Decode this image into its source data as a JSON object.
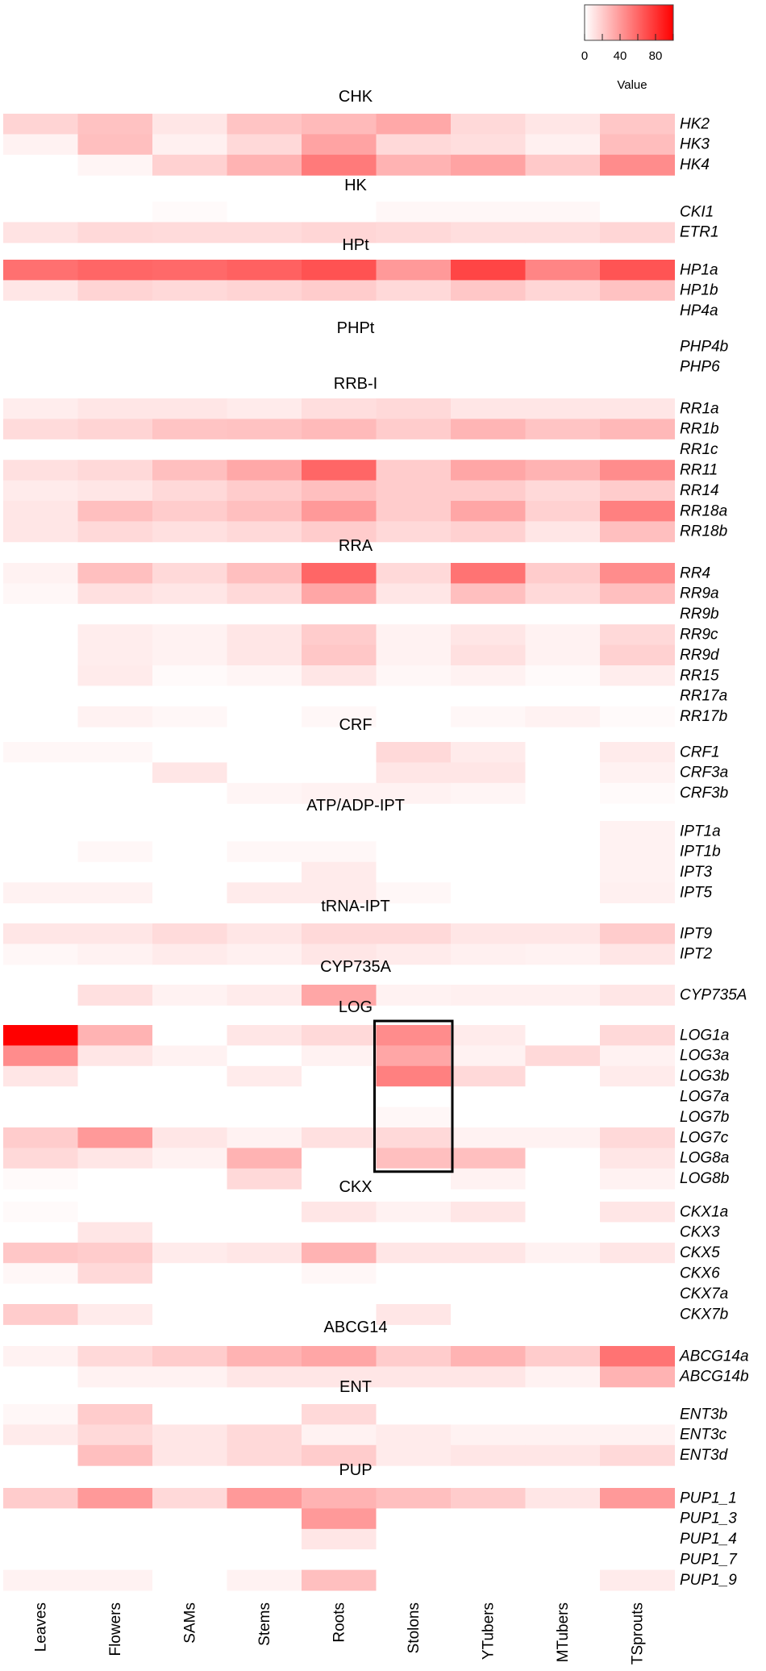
{
  "chart_data": {
    "type": "heatmap",
    "columns": [
      "Leaves",
      "Flowers",
      "SAMs",
      "Stems",
      "Roots",
      "Stolons",
      "YTubers",
      "MTubers",
      "TSprouts"
    ],
    "colors": {
      "low": "#ffffff",
      "high": "#ff0000"
    },
    "value_range": [
      0,
      100
    ],
    "legend": {
      "title": "Value",
      "ticks": [
        0,
        40,
        80
      ],
      "placement": "top-right"
    },
    "highlight": {
      "column": "Stolons",
      "from_row": "LOG1a",
      "to_row": "LOG8a"
    },
    "groups": [
      {
        "name": "CHK",
        "rows": [
          {
            "gene": "HK2",
            "values": [
              17,
              24,
              10,
              23,
              27,
              34,
              15,
              10,
              22
            ]
          },
          {
            "gene": "HK3",
            "values": [
              5,
              25,
              6,
              15,
              36,
              15,
              13,
              6,
              26
            ]
          },
          {
            "gene": "HK4",
            "values": [
              0,
              4,
              18,
              30,
              52,
              30,
              36,
              21,
              45
            ]
          }
        ]
      },
      {
        "name": "HK",
        "rows": [
          {
            "gene": "CKI1",
            "values": [
              0,
              0,
              2,
              0,
              0,
              3,
              3,
              3,
              0
            ]
          },
          {
            "gene": "ETR1",
            "values": [
              11,
              15,
              14,
              14,
              16,
              15,
              13,
              13,
              16
            ]
          }
        ]
      },
      {
        "name": "HPt",
        "rows": [
          {
            "gene": "HP1a",
            "values": [
              56,
              60,
              59,
              62,
              68,
              40,
              73,
              48,
              67
            ]
          },
          {
            "gene": "HP1b",
            "values": [
              10,
              17,
              15,
              17,
              20,
              15,
              22,
              16,
              24
            ]
          },
          {
            "gene": "HP4a",
            "values": [
              0,
              0,
              0,
              0,
              0,
              0,
              0,
              0,
              0
            ]
          }
        ]
      },
      {
        "name": "PHPt",
        "rows": [
          {
            "gene": "PHP4b",
            "values": [
              0,
              0,
              0,
              0,
              0,
              0,
              0,
              0,
              0
            ]
          },
          {
            "gene": "PHP6",
            "values": [
              0,
              0,
              0,
              0,
              0,
              0,
              0,
              0,
              0
            ]
          }
        ]
      },
      {
        "name": "RRB-I",
        "rows": [
          {
            "gene": "RR1a",
            "values": [
              7,
              10,
              10,
              8,
              13,
              15,
              10,
              10,
              10
            ]
          },
          {
            "gene": "RR1b",
            "values": [
              14,
              17,
              23,
              24,
              27,
              20,
              29,
              23,
              28
            ]
          },
          {
            "gene": "RR1c",
            "values": [
              0,
              0,
              0,
              0,
              0,
              0,
              0,
              0,
              0
            ]
          },
          {
            "gene": "RR11",
            "values": [
              12,
              15,
              25,
              34,
              60,
              20,
              35,
              30,
              45
            ]
          },
          {
            "gene": "RR14",
            "values": [
              8,
              10,
              15,
              20,
              25,
              20,
              20,
              15,
              20
            ]
          },
          {
            "gene": "RR18a",
            "values": [
              10,
              25,
              20,
              25,
              40,
              20,
              35,
              18,
              50
            ]
          },
          {
            "gene": "RR18b",
            "values": [
              10,
              15,
              12,
              15,
              20,
              15,
              18,
              10,
              25
            ]
          }
        ]
      },
      {
        "name": "RRA",
        "rows": [
          {
            "gene": "RR4",
            "values": [
              5,
              25,
              15,
              25,
              60,
              15,
              55,
              20,
              45
            ]
          },
          {
            "gene": "RR9a",
            "values": [
              3,
              12,
              10,
              15,
              35,
              10,
              25,
              15,
              25
            ]
          },
          {
            "gene": "RR9b",
            "values": [
              0,
              0,
              0,
              0,
              0,
              0,
              0,
              0,
              0
            ]
          },
          {
            "gene": "RR9c",
            "values": [
              0,
              7,
              5,
              10,
              20,
              5,
              10,
              5,
              15
            ]
          },
          {
            "gene": "RR9d",
            "values": [
              0,
              7,
              5,
              10,
              22,
              5,
              12,
              5,
              18
            ]
          },
          {
            "gene": "RR15",
            "values": [
              0,
              8,
              2,
              4,
              10,
              3,
              5,
              2,
              7
            ]
          },
          {
            "gene": "RR17a",
            "values": [
              0,
              0,
              0,
              0,
              0,
              0,
              0,
              0,
              0
            ]
          },
          {
            "gene": "RR17b",
            "values": [
              0,
              5,
              3,
              0,
              3,
              0,
              3,
              5,
              2
            ]
          }
        ]
      },
      {
        "name": "CRF",
        "rows": [
          {
            "gene": "CRF1",
            "values": [
              3,
              3,
              0,
              0,
              0,
              15,
              8,
              0,
              8
            ]
          },
          {
            "gene": "CRF3a",
            "values": [
              0,
              0,
              10,
              0,
              0,
              10,
              10,
              0,
              5
            ]
          },
          {
            "gene": "CRF3b",
            "values": [
              0,
              0,
              0,
              4,
              5,
              5,
              4,
              0,
              2
            ]
          }
        ]
      },
      {
        "name": "ATP/ADP-IPT",
        "rows": [
          {
            "gene": "IPT1a",
            "values": [
              0,
              0,
              0,
              0,
              0,
              0,
              0,
              0,
              5
            ]
          },
          {
            "gene": "IPT1b",
            "values": [
              0,
              3,
              0,
              3,
              3,
              0,
              0,
              0,
              5
            ]
          },
          {
            "gene": "IPT3",
            "values": [
              0,
              0,
              0,
              0,
              8,
              0,
              0,
              0,
              5
            ]
          },
          {
            "gene": "IPT5",
            "values": [
              5,
              5,
              0,
              8,
              8,
              3,
              0,
              0,
              6
            ]
          }
        ]
      },
      {
        "name": "tRNA-IPT",
        "rows": [
          {
            "gene": "IPT9",
            "values": [
              10,
              10,
              14,
              10,
              15,
              15,
              10,
              10,
              20
            ]
          },
          {
            "gene": "IPT2",
            "values": [
              3,
              5,
              8,
              6,
              10,
              8,
              6,
              5,
              10
            ]
          }
        ]
      },
      {
        "name": "CYP735A",
        "rows": [
          {
            "gene": "CYP735A",
            "values": [
              0,
              12,
              5,
              8,
              35,
              5,
              6,
              6,
              10
            ]
          }
        ]
      },
      {
        "name": "LOG",
        "rows": [
          {
            "gene": "LOG1a",
            "values": [
              100,
              30,
              0,
              10,
              15,
              45,
              8,
              0,
              15
            ]
          },
          {
            "gene": "LOG3a",
            "values": [
              45,
              10,
              5,
              0,
              5,
              35,
              5,
              15,
              5
            ]
          },
          {
            "gene": "LOG3b",
            "values": [
              10,
              0,
              0,
              8,
              0,
              50,
              15,
              0,
              8
            ]
          },
          {
            "gene": "LOG7a",
            "values": [
              0,
              0,
              0,
              0,
              0,
              0,
              0,
              0,
              0
            ]
          },
          {
            "gene": "LOG7b",
            "values": [
              0,
              0,
              0,
              0,
              0,
              3,
              0,
              0,
              0
            ]
          },
          {
            "gene": "LOG7c",
            "values": [
              20,
              40,
              10,
              5,
              12,
              15,
              5,
              5,
              15
            ]
          },
          {
            "gene": "LOG8a",
            "values": [
              15,
              10,
              5,
              30,
              0,
              25,
              25,
              0,
              10
            ]
          },
          {
            "gene": "LOG8b",
            "values": [
              2,
              0,
              0,
              15,
              0,
              0,
              5,
              0,
              5
            ]
          }
        ]
      },
      {
        "name": "CKX",
        "rows": [
          {
            "gene": "CKX1a",
            "values": [
              2,
              0,
              0,
              0,
              10,
              5,
              10,
              0,
              10
            ]
          },
          {
            "gene": "CKX3",
            "values": [
              0,
              10,
              0,
              0,
              0,
              0,
              0,
              0,
              0
            ]
          },
          {
            "gene": "CKX5",
            "values": [
              22,
              20,
              8,
              10,
              30,
              10,
              10,
              5,
              10
            ]
          },
          {
            "gene": "CKX6",
            "values": [
              3,
              15,
              0,
              0,
              3,
              0,
              0,
              0,
              0
            ]
          },
          {
            "gene": "CKX7a",
            "values": [
              0,
              0,
              0,
              0,
              0,
              0,
              0,
              0,
              0
            ]
          },
          {
            "gene": "CKX7b",
            "values": [
              20,
              8,
              0,
              0,
              0,
              10,
              0,
              0,
              0
            ]
          }
        ]
      },
      {
        "name": "ABCG14",
        "rows": [
          {
            "gene": "ABCG14a",
            "values": [
              5,
              15,
              20,
              30,
              35,
              20,
              30,
              20,
              55
            ]
          },
          {
            "gene": "ABCG14b",
            "values": [
              0,
              5,
              5,
              10,
              10,
              10,
              10,
              5,
              30
            ]
          }
        ]
      },
      {
        "name": "ENT",
        "rows": [
          {
            "gene": "ENT3b",
            "values": [
              3,
              20,
              0,
              0,
              15,
              0,
              0,
              0,
              0
            ]
          },
          {
            "gene": "ENT3c",
            "values": [
              8,
              15,
              10,
              15,
              5,
              8,
              5,
              5,
              5
            ]
          },
          {
            "gene": "ENT3d",
            "values": [
              0,
              25,
              10,
              15,
              20,
              8,
              10,
              10,
              15
            ]
          }
        ]
      },
      {
        "name": "PUP",
        "rows": [
          {
            "gene": "PUP1_1",
            "values": [
              20,
              40,
              15,
              40,
              30,
              25,
              20,
              10,
              40
            ]
          },
          {
            "gene": "PUP1_3",
            "values": [
              0,
              0,
              0,
              0,
              40,
              0,
              0,
              0,
              0
            ]
          },
          {
            "gene": "PUP1_4",
            "values": [
              0,
              0,
              0,
              0,
              10,
              0,
              0,
              0,
              0
            ]
          },
          {
            "gene": "PUP1_7",
            "values": [
              0,
              0,
              0,
              0,
              0,
              0,
              0,
              0,
              0
            ]
          },
          {
            "gene": "PUP1_9",
            "values": [
              5,
              5,
              0,
              5,
              25,
              0,
              0,
              0,
              8
            ]
          }
        ]
      }
    ]
  }
}
